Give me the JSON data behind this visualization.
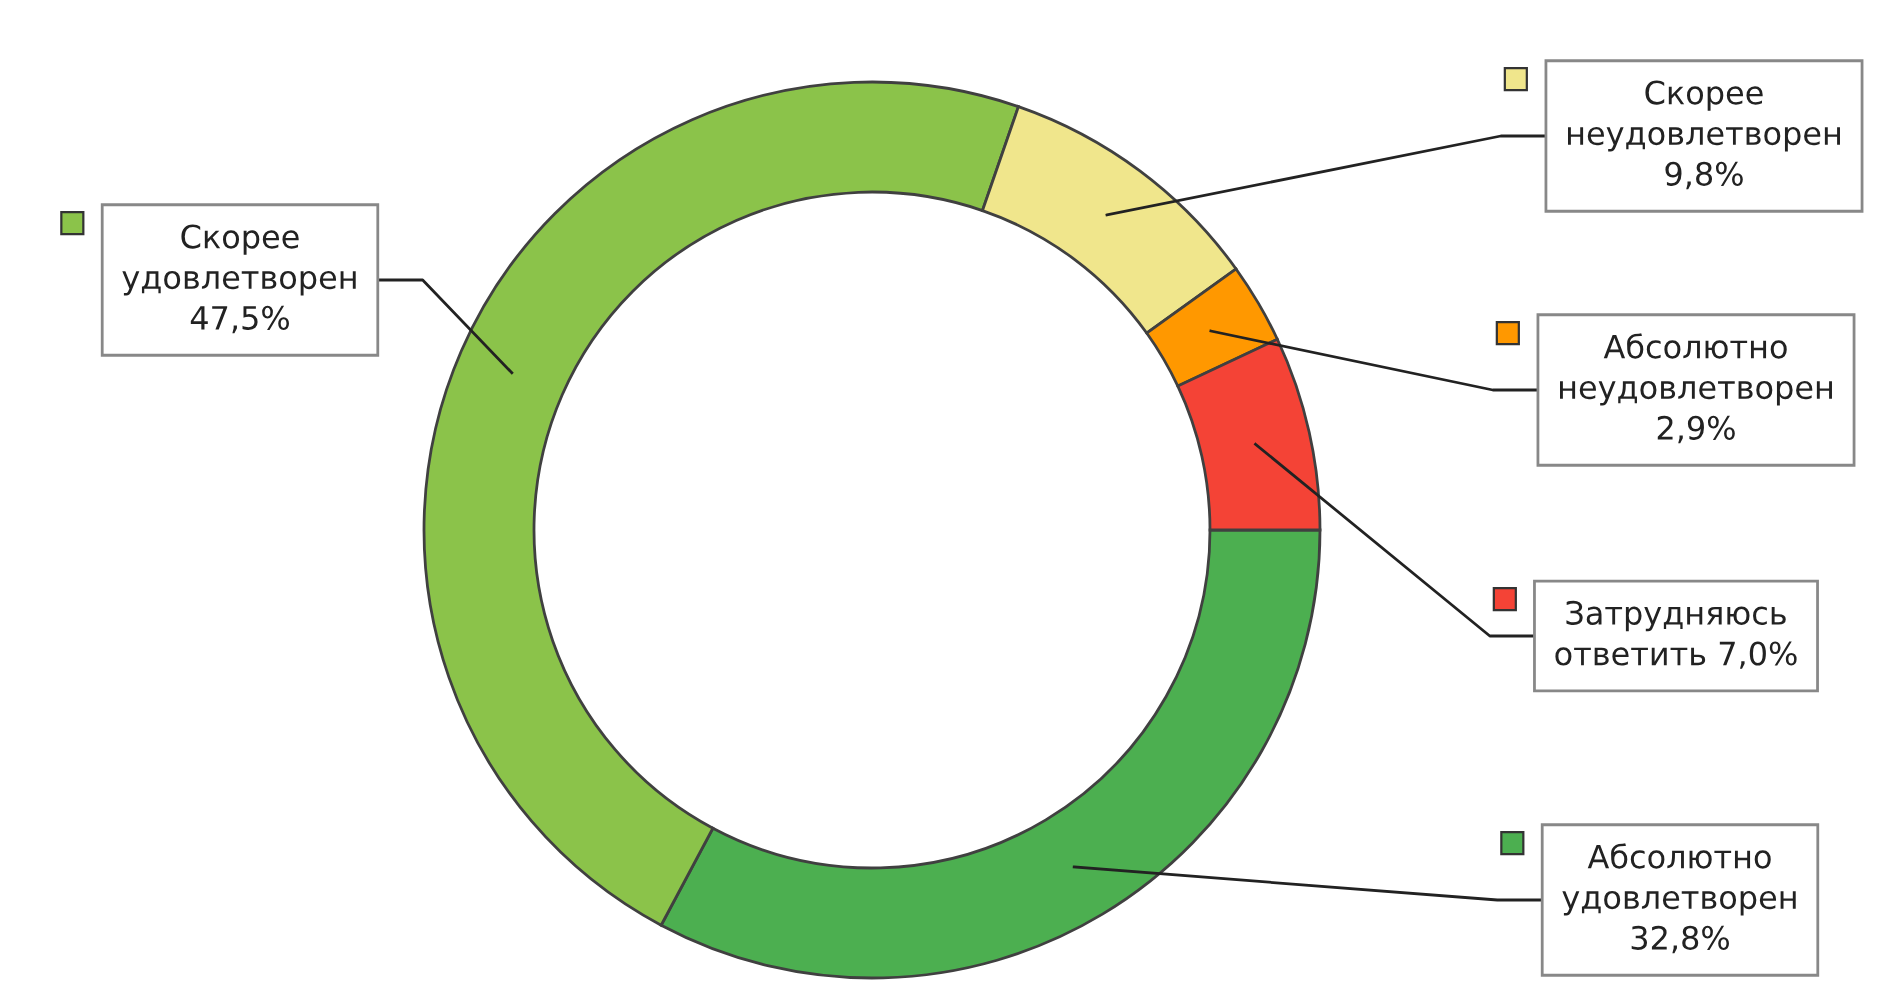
{
  "chart_data": {
    "type": "donut",
    "categories": [
      "Абсолютно удовлетворен",
      "Скорее удовлетворен",
      "Скорее неудовлетворен",
      "Абсолютно неудовлетворен",
      "Затрудняюсь ответить"
    ],
    "values": [
      32.8,
      47.5,
      9.8,
      2.9,
      7.0
    ],
    "value_labels": [
      "32,8%",
      "47,5%",
      "9,8%",
      "2,9%",
      "7,0%"
    ],
    "colors": [
      "#4caf50",
      "#8bc34a",
      "#f0e68c",
      "#ff9800",
      "#f44336"
    ],
    "legend": "right"
  }
}
